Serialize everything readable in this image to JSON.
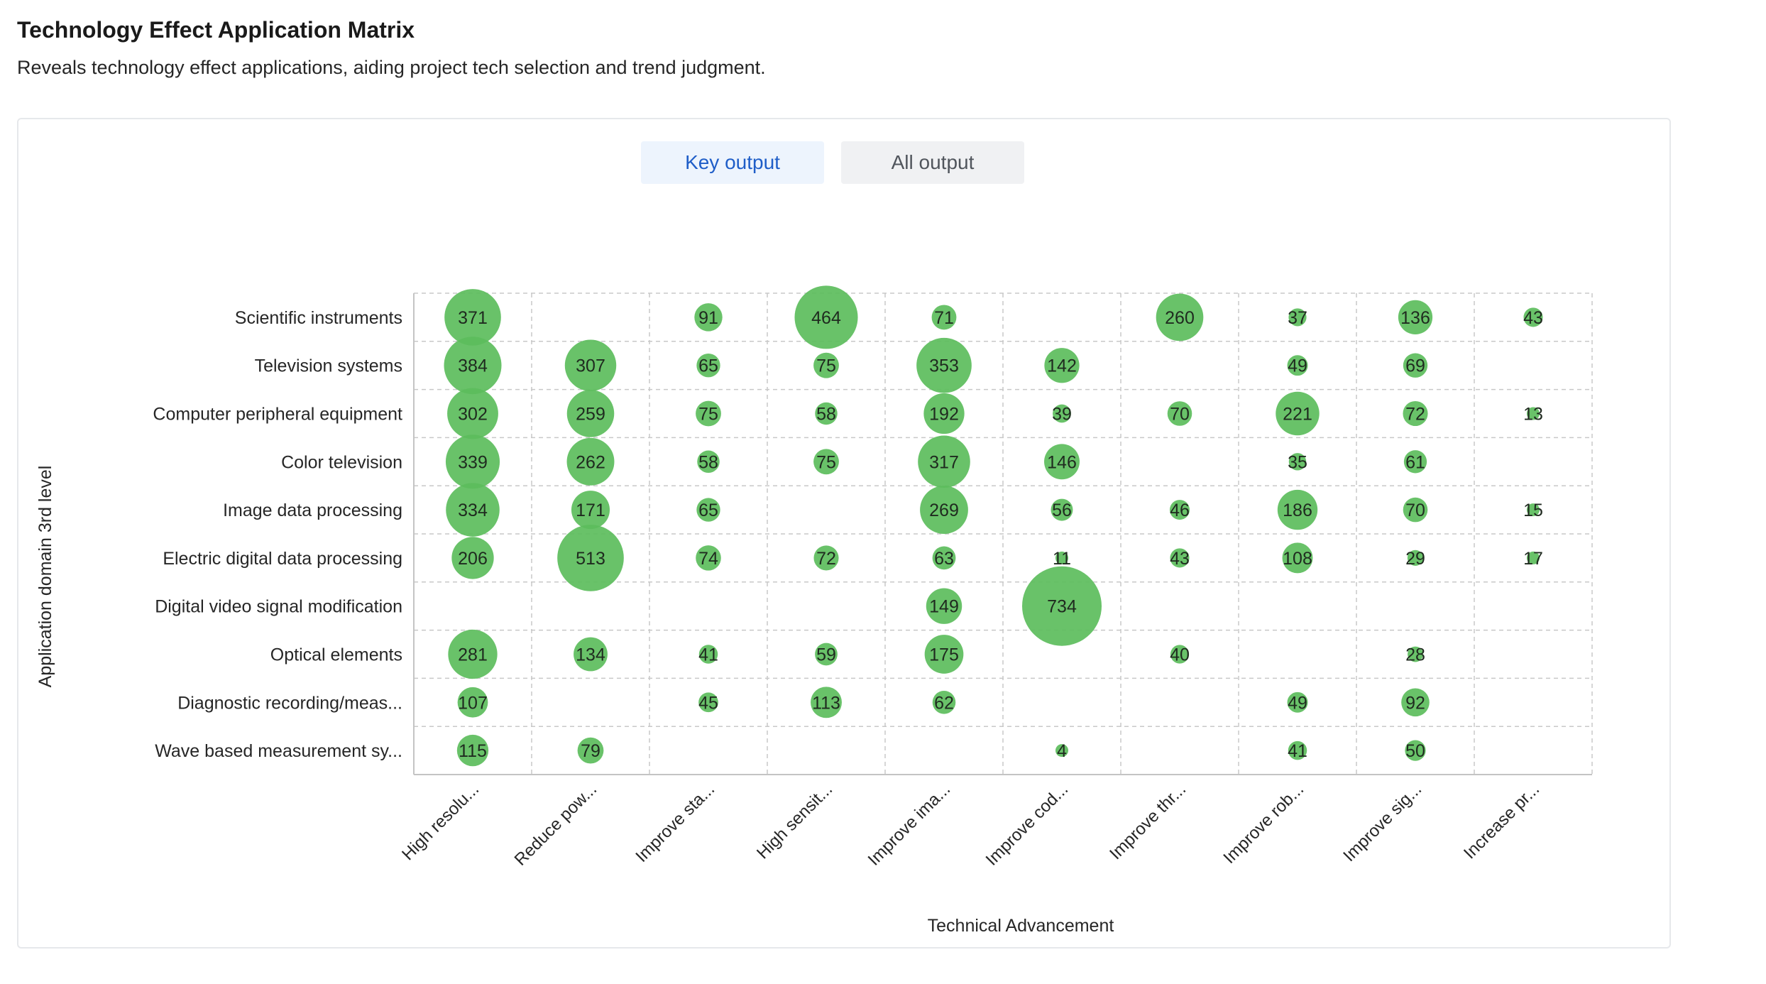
{
  "header": {
    "title": "Technology Effect Application Matrix",
    "subtitle": "Reveals technology effect applications, aiding project tech selection and trend judgment."
  },
  "tabs": [
    {
      "label": "Key output",
      "active": true
    },
    {
      "label": "All output",
      "active": false
    }
  ],
  "colors": {
    "bubble": "#5cbd5c",
    "grid": "#c8c8c8",
    "axis": "#c4c4c4",
    "tab_active_text": "#1f5ec8"
  },
  "chart_data": {
    "type": "scatter",
    "title": "",
    "xlabel": "Technical Advancement",
    "ylabel": "Application domain 3rd level",
    "x_categories": [
      "High resolu...",
      "Reduce pow...",
      "Improve sta...",
      "High sensit...",
      "Improve ima...",
      "Improve cod...",
      "Improve thr...",
      "Improve rob...",
      "Improve sig...",
      "Increase pr..."
    ],
    "y_categories": [
      "Scientific instruments",
      "Television systems",
      "Computer peripheral equipment",
      "Color television",
      "Image data processing",
      "Electric digital data processing",
      "Digital video signal modification",
      "Optical elements",
      "Diagnostic recording/meas...",
      "Wave based measurement sy..."
    ],
    "values": [
      [
        371,
        null,
        91,
        464,
        71,
        null,
        260,
        37,
        136,
        43
      ],
      [
        384,
        307,
        65,
        75,
        353,
        142,
        null,
        49,
        69,
        null
      ],
      [
        302,
        259,
        75,
        58,
        192,
        39,
        70,
        221,
        72,
        13
      ],
      [
        339,
        262,
        58,
        75,
        317,
        146,
        null,
        35,
        61,
        null
      ],
      [
        334,
        171,
        65,
        null,
        269,
        56,
        46,
        186,
        70,
        15
      ],
      [
        206,
        513,
        74,
        72,
        63,
        11,
        43,
        108,
        29,
        17
      ],
      [
        null,
        null,
        null,
        null,
        149,
        734,
        null,
        null,
        null,
        null
      ],
      [
        281,
        134,
        41,
        59,
        175,
        null,
        40,
        null,
        28,
        null
      ],
      [
        107,
        null,
        45,
        113,
        62,
        null,
        null,
        49,
        92,
        null
      ],
      [
        115,
        79,
        null,
        null,
        null,
        4,
        null,
        41,
        50,
        null
      ]
    ],
    "grid": true,
    "legend": "none"
  }
}
